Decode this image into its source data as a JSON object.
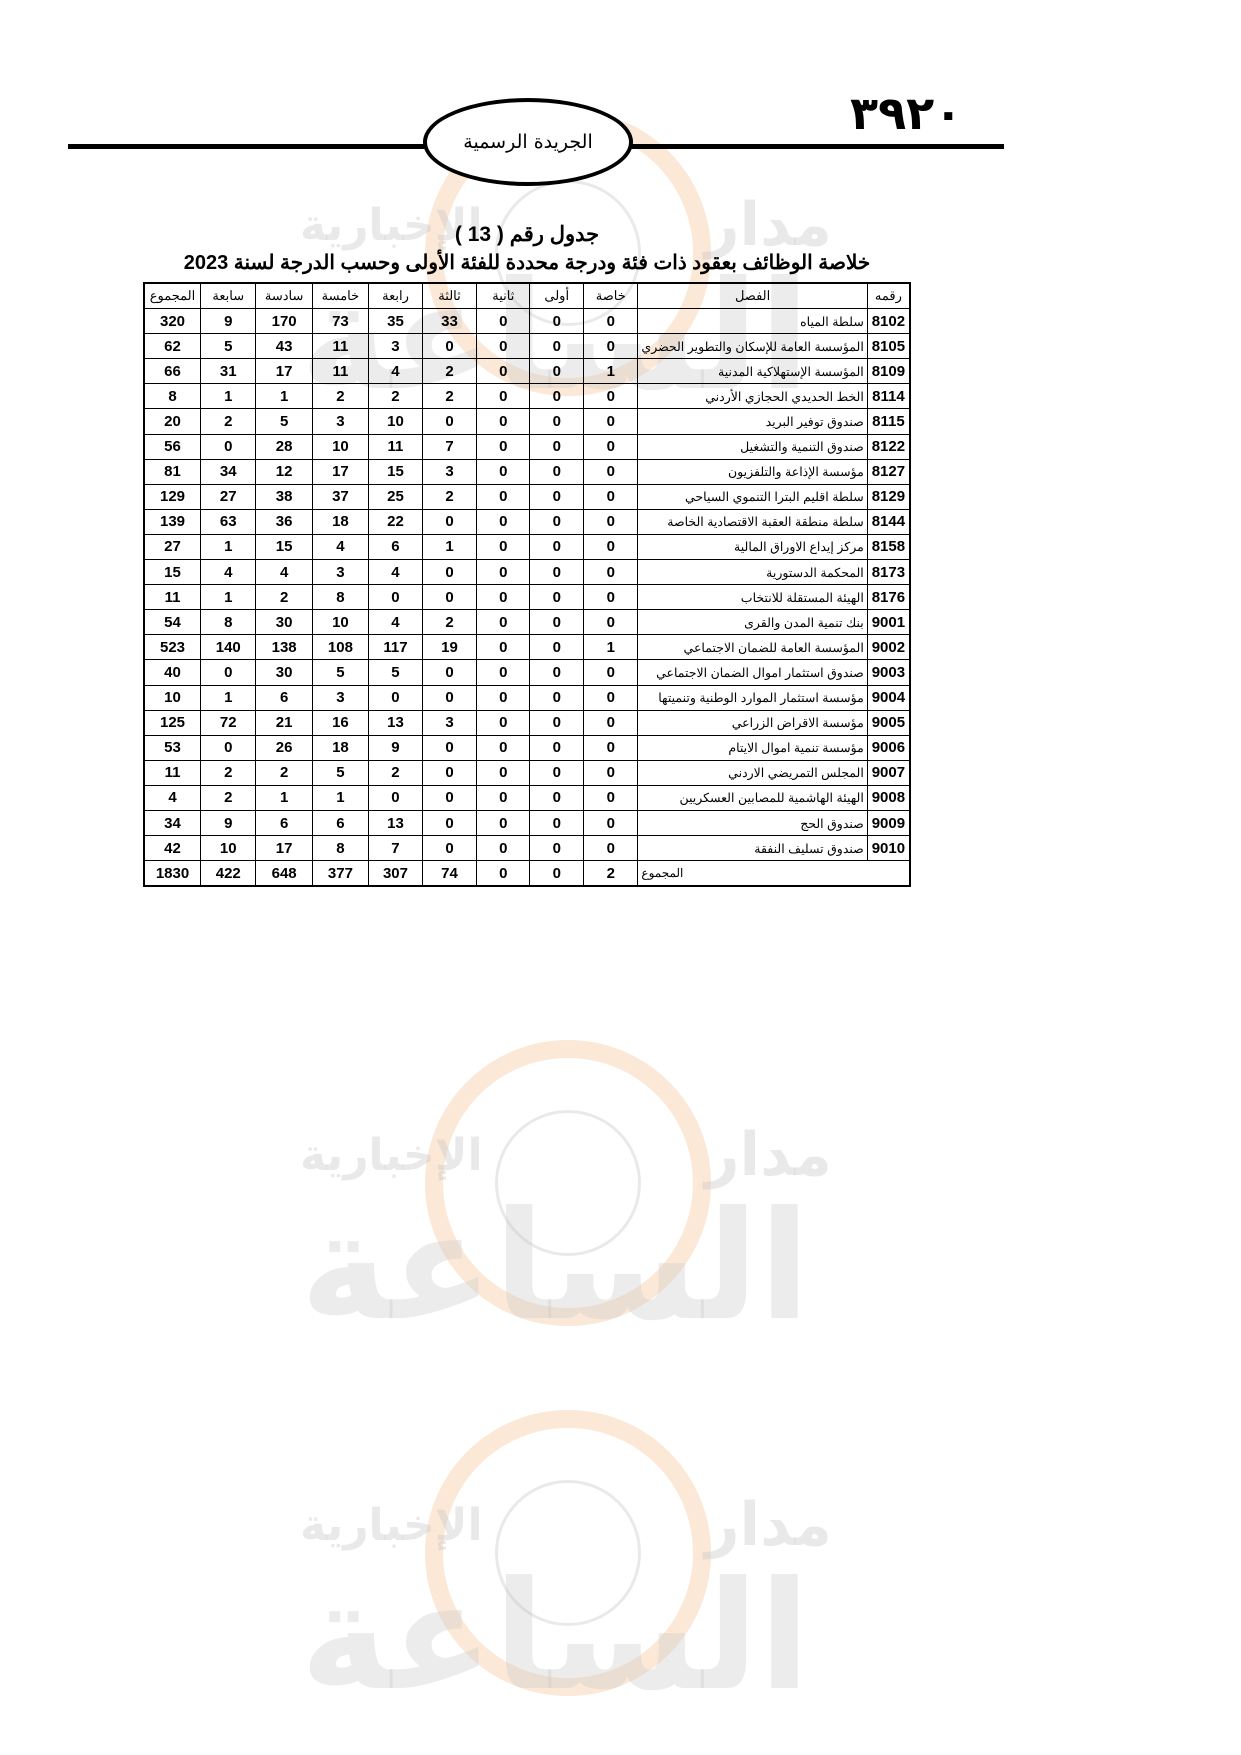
{
  "header": {
    "page_number": "٣٩٢٠",
    "gazette_name": "الجريدة الرسمية"
  },
  "watermark": {
    "brand_top": "مدار",
    "brand_main": "الساعة",
    "brand_sub": "الإخبارية"
  },
  "table_title": "جدول رقم ( 13 )",
  "table_subtitle": "خلاصة الوظائف بعقود ذات فئة ودرجة محددة للفئة الأولى وحسب الدرجة لسنة 2023",
  "columns": [
    "رقمه",
    "الفصل",
    "خاصة",
    "أولى",
    "ثانية",
    "ثالثة",
    "رابعة",
    "خامسة",
    "سادسة",
    "سابعة",
    "المجموع"
  ],
  "rows": [
    [
      "8102",
      "سلطة المياه",
      "0",
      "0",
      "0",
      "33",
      "35",
      "73",
      "170",
      "9",
      "320"
    ],
    [
      "8105",
      "المؤسسة العامة للإسكان والتطوير الحضري",
      "0",
      "0",
      "0",
      "0",
      "3",
      "11",
      "43",
      "5",
      "62"
    ],
    [
      "8109",
      "المؤسسة الإستهلاكية المدنية",
      "1",
      "0",
      "0",
      "2",
      "4",
      "11",
      "17",
      "31",
      "66"
    ],
    [
      "8114",
      "الخط الحديدي الحجازي الأردني",
      "0",
      "0",
      "0",
      "2",
      "2",
      "2",
      "1",
      "1",
      "8"
    ],
    [
      "8115",
      "صندوق توفير البريد",
      "0",
      "0",
      "0",
      "0",
      "10",
      "3",
      "5",
      "2",
      "20"
    ],
    [
      "8122",
      "صندوق التنمية والتشغيل",
      "0",
      "0",
      "0",
      "7",
      "11",
      "10",
      "28",
      "0",
      "56"
    ],
    [
      "8127",
      "مؤسسة الإذاعة والتلفزيون",
      "0",
      "0",
      "0",
      "3",
      "15",
      "17",
      "12",
      "34",
      "81"
    ],
    [
      "8129",
      "سلطة اقليم البترا التنموي السياحي",
      "0",
      "0",
      "0",
      "2",
      "25",
      "37",
      "38",
      "27",
      "129"
    ],
    [
      "8144",
      "سلطة منطقة العقبة الاقتصادية الخاصة",
      "0",
      "0",
      "0",
      "0",
      "22",
      "18",
      "36",
      "63",
      "139"
    ],
    [
      "8158",
      "مركز إيداع الاوراق المالية",
      "0",
      "0",
      "0",
      "1",
      "6",
      "4",
      "15",
      "1",
      "27"
    ],
    [
      "8173",
      "المحكمة الدستورية",
      "0",
      "0",
      "0",
      "0",
      "4",
      "3",
      "4",
      "4",
      "15"
    ],
    [
      "8176",
      "الهيئة المستقلة للانتخاب",
      "0",
      "0",
      "0",
      "0",
      "0",
      "8",
      "2",
      "1",
      "11"
    ],
    [
      "9001",
      "بنك تنمية المدن والقرى",
      "0",
      "0",
      "0",
      "2",
      "4",
      "10",
      "30",
      "8",
      "54"
    ],
    [
      "9002",
      "المؤسسة العامة للضمان الاجتماعي",
      "1",
      "0",
      "0",
      "19",
      "117",
      "108",
      "138",
      "140",
      "523"
    ],
    [
      "9003",
      "صندوق استثمار اموال الضمان الاجتماعي",
      "0",
      "0",
      "0",
      "0",
      "5",
      "5",
      "30",
      "0",
      "40"
    ],
    [
      "9004",
      "مؤسسة استثمار الموارد الوطنية وتنميتها",
      "0",
      "0",
      "0",
      "0",
      "0",
      "3",
      "6",
      "1",
      "10"
    ],
    [
      "9005",
      "مؤسسة الاقراض الزراعي",
      "0",
      "0",
      "0",
      "3",
      "13",
      "16",
      "21",
      "72",
      "125"
    ],
    [
      "9006",
      "مؤسسة تنمية اموال الايتام",
      "0",
      "0",
      "0",
      "0",
      "9",
      "18",
      "26",
      "0",
      "53"
    ],
    [
      "9007",
      "المجلس التمريضي الاردني",
      "0",
      "0",
      "0",
      "0",
      "2",
      "5",
      "2",
      "2",
      "11"
    ],
    [
      "9008",
      "الهيئة الهاشمية للمصابين العسكريين",
      "0",
      "0",
      "0",
      "0",
      "0",
      "1",
      "1",
      "2",
      "4"
    ],
    [
      "9009",
      "صندوق الحج",
      "0",
      "0",
      "0",
      "0",
      "13",
      "6",
      "6",
      "9",
      "34"
    ],
    [
      "9010",
      "صندوق تسليف النفقة",
      "0",
      "0",
      "0",
      "0",
      "7",
      "8",
      "17",
      "10",
      "42"
    ]
  ],
  "total": {
    "label": "المجموع",
    "values": [
      "2",
      "0",
      "0",
      "74",
      "307",
      "377",
      "648",
      "422",
      "1830"
    ]
  }
}
